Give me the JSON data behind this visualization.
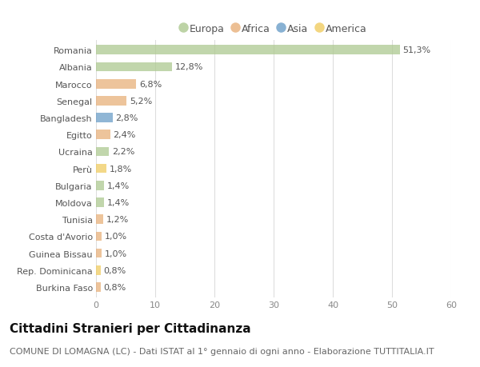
{
  "countries": [
    "Romania",
    "Albania",
    "Marocco",
    "Senegal",
    "Bangladesh",
    "Egitto",
    "Ucraina",
    "Perù",
    "Bulgaria",
    "Moldova",
    "Tunisia",
    "Costa d'Avorio",
    "Guinea Bissau",
    "Rep. Dominicana",
    "Burkina Faso"
  ],
  "values": [
    51.3,
    12.8,
    6.8,
    5.2,
    2.8,
    2.4,
    2.2,
    1.8,
    1.4,
    1.4,
    1.2,
    1.0,
    1.0,
    0.8,
    0.8
  ],
  "labels": [
    "51,3%",
    "12,8%",
    "6,8%",
    "5,2%",
    "2,8%",
    "2,4%",
    "2,2%",
    "1,8%",
    "1,4%",
    "1,4%",
    "1,2%",
    "1,0%",
    "1,0%",
    "0,8%",
    "0,8%"
  ],
  "continents": [
    "Europa",
    "Europa",
    "Africa",
    "Africa",
    "Asia",
    "Africa",
    "Europa",
    "America",
    "Europa",
    "Europa",
    "Africa",
    "Africa",
    "Africa",
    "America",
    "Africa"
  ],
  "continent_colors": {
    "Europa": "#adc990",
    "Africa": "#e8b07a",
    "Asia": "#6b9ec8",
    "America": "#f0cc60"
  },
  "legend_order": [
    "Europa",
    "Africa",
    "Asia",
    "America"
  ],
  "title": "Cittadini Stranieri per Cittadinanza",
  "subtitle": "COMUNE DI LOMAGNA (LC) - Dati ISTAT al 1° gennaio di ogni anno - Elaborazione TUTTITALIA.IT",
  "xlim": [
    0,
    60
  ],
  "xticks": [
    0,
    10,
    20,
    30,
    40,
    50,
    60
  ],
  "background_color": "#ffffff",
  "bar_height": 0.55,
  "title_fontsize": 11,
  "subtitle_fontsize": 8,
  "label_fontsize": 8,
  "tick_fontsize": 8,
  "legend_fontsize": 9
}
